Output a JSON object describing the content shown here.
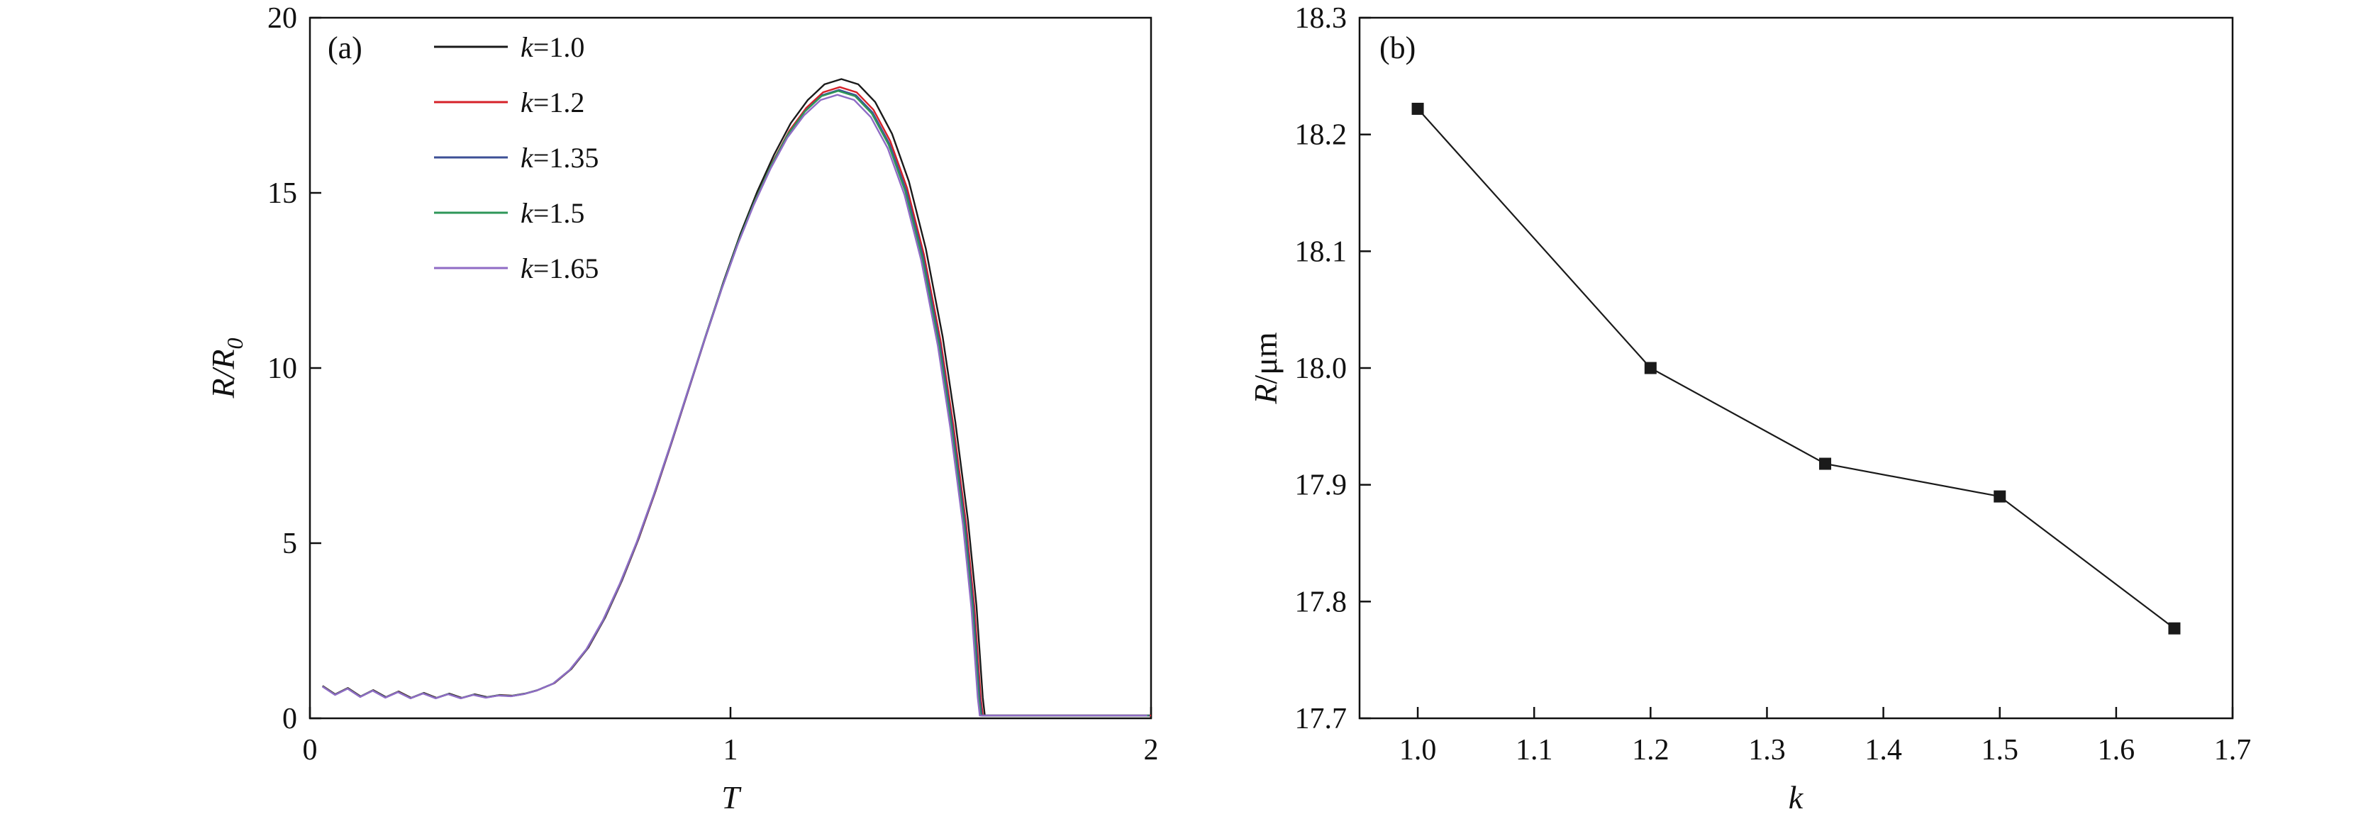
{
  "figure": {
    "background": "#ffffff",
    "axis_color": "#111111"
  },
  "panel_a": {
    "letter": "(a)",
    "xlabel": "T",
    "ylabel_main": "R/R",
    "ylabel_sub": "0",
    "x_ticks": [
      "0",
      "1",
      "2"
    ],
    "y_ticks": [
      "0",
      "5",
      "10",
      "15",
      "20"
    ],
    "xlim": [
      0,
      2
    ],
    "ylim": [
      0,
      20
    ]
  },
  "panel_b": {
    "letter": "(b)",
    "xlabel": "k",
    "ylabel_var": "R",
    "ylabel_rest": "/μm",
    "x_ticks": [
      "1.0",
      "1.1",
      "1.2",
      "1.3",
      "1.4",
      "1.5",
      "1.6",
      "1.7"
    ],
    "y_ticks": [
      "17.7",
      "17.8",
      "17.9",
      "18.0",
      "18.1",
      "18.2",
      "18.3"
    ],
    "xlim": [
      0.95,
      1.7
    ],
    "ylim": [
      17.7,
      18.3
    ]
  },
  "chart_data": [
    {
      "type": "line",
      "panel": "a",
      "xlabel": "T",
      "ylabel": "R/R0",
      "xlim": [
        0,
        2
      ],
      "ylim": [
        0,
        20
      ],
      "grid": false,
      "legend_position": "upper-left",
      "base_curve": {
        "t": [
          0.03,
          0.06,
          0.09,
          0.12,
          0.15,
          0.18,
          0.21,
          0.24,
          0.27,
          0.3,
          0.33,
          0.36,
          0.39,
          0.42,
          0.45,
          0.48,
          0.51,
          0.54,
          0.58,
          0.62,
          0.66,
          0.7,
          0.74,
          0.78,
          0.82,
          0.86,
          0.9,
          0.94,
          0.98,
          1.02,
          1.06,
          1.1,
          1.14,
          1.18,
          1.22,
          1.26,
          1.3,
          1.34,
          1.38,
          1.42,
          1.46,
          1.5,
          1.53,
          1.56,
          1.58,
          1.595,
          1.6,
          1.62,
          2.0
        ],
        "y": [
          0.92,
          0.68,
          0.86,
          0.62,
          0.8,
          0.6,
          0.76,
          0.58,
          0.72,
          0.58,
          0.7,
          0.58,
          0.68,
          0.6,
          0.66,
          0.64,
          0.7,
          0.8,
          1.0,
          1.4,
          2.0,
          2.85,
          3.9,
          5.1,
          6.45,
          7.9,
          9.4,
          10.9,
          12.35,
          13.7,
          14.9,
          15.95,
          16.85,
          17.5,
          17.95,
          18.1,
          17.95,
          17.45,
          16.55,
          15.2,
          13.3,
          10.8,
          8.4,
          5.6,
          3.2,
          0.6,
          0.08,
          0.08,
          0.08
        ]
      },
      "series": [
        {
          "name": "k=1.0",
          "legend_var": "k",
          "legend_val": "=1.0",
          "color": "#1a1a1a",
          "peak": 18.25,
          "x_scale": 1.003
        },
        {
          "name": "k=1.2",
          "legend_var": "k",
          "legend_val": "=1.2",
          "color": "#d62128",
          "peak": 18.02,
          "x_scale": 1.0
        },
        {
          "name": "k=1.35",
          "legend_var": "k",
          "legend_val": "=1.35",
          "color": "#3d5096",
          "peak": 17.94,
          "x_scale": 0.9985
        },
        {
          "name": "k=1.5",
          "legend_var": "k",
          "legend_val": "=1.5",
          "color": "#2e9658",
          "peak": 17.91,
          "x_scale": 0.997
        },
        {
          "name": "k=1.65",
          "legend_var": "k",
          "legend_val": "=1.65",
          "color": "#8f6bc5",
          "peak": 17.8,
          "x_scale": 0.9955
        }
      ]
    },
    {
      "type": "scatter-line",
      "panel": "b",
      "xlabel": "k",
      "ylabel": "R/μm",
      "xlim": [
        0.95,
        1.7
      ],
      "ylim": [
        17.7,
        18.3
      ],
      "grid": false,
      "marker": "square",
      "color": "#1a1a1a",
      "x": [
        1.0,
        1.2,
        1.35,
        1.5,
        1.65
      ],
      "y": [
        18.222,
        18.0,
        17.918,
        17.89,
        17.777
      ]
    }
  ]
}
